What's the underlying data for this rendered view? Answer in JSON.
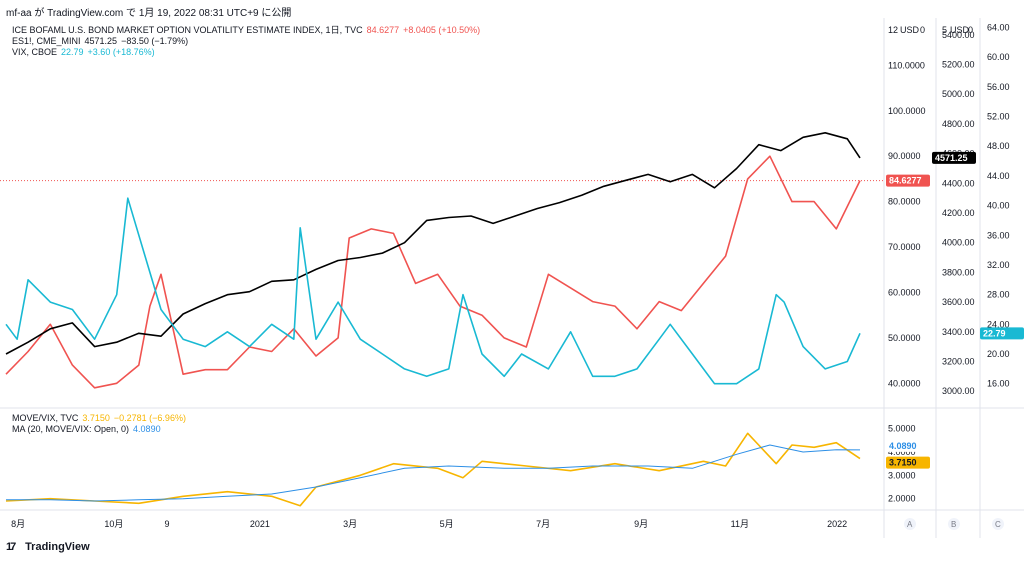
{
  "header": {
    "caption": "mf-aa が TradingView.com で 1月 19, 2022 08:31 UTC+9 に公開"
  },
  "brand": {
    "name": "TradingView",
    "icon": "tradingview-logo-icon"
  },
  "colors": {
    "move": "#f05350",
    "es": "#000000",
    "vix": "#19b9d3",
    "ratio": "#f7b500",
    "ma": "#2d8fe6",
    "grid": "#f0f3fa",
    "axis_text": "#131722"
  },
  "legend_main": [
    {
      "name": "ICE BOFAML U.S. BOND MARKET OPTION VOLATILITY ESTIMATE INDEX, 1日, TVC",
      "last": "84.6277",
      "change": "+8.0405 (+10.50%)",
      "color": "#f05350"
    },
    {
      "name": "ES1!, CME_MINI",
      "last": "4571.25",
      "change": "−83.50 (−1.79%)",
      "color": "#131722"
    },
    {
      "name": "VIX, CBOE",
      "last": "22.79",
      "change": "+3.60 (+18.76%)",
      "color": "#19b9d3"
    }
  ],
  "legend_lower": [
    {
      "name": "MOVE/VIX, TVC",
      "last": "3.7150",
      "change": "−0.2781 (−6.96%)",
      "color": "#f7b500"
    },
    {
      "name": "MA (20, MOVE/VIX: Open, 0)",
      "last": "4.0890",
      "change": "",
      "color": "#2d8fe6"
    }
  ],
  "axes": {
    "move_ticks": [
      "110.0000",
      "100.0000",
      "90.0000",
      "80.0000",
      "70.0000",
      "60.0000",
      "50.0000",
      "40.0000"
    ],
    "es_ticks": [
      "5400.00",
      "5200.00",
      "5000.00",
      "4800.00",
      "4600.00",
      "4400.00",
      "4200.00",
      "4000.00",
      "3800.00",
      "3600.00",
      "3400.00",
      "3200.00",
      "3000.00"
    ],
    "vix_ticks": [
      "64.00",
      "60.00",
      "56.00",
      "52.00",
      "48.00",
      "44.00",
      "40.00",
      "36.00",
      "32.00",
      "28.00",
      "24.00",
      "20.00",
      "16.00"
    ],
    "ratio_ticks": [
      "5.0000",
      "4.0000",
      "3.0000",
      "2.0000"
    ],
    "unit_label": "USD",
    "partial_top_labels": [
      "12",
      "5",
      "0"
    ],
    "x_labels": [
      "8月",
      "10月",
      "9",
      "2021",
      "3月",
      "5月",
      "7月",
      "9月",
      "11月",
      "2022"
    ],
    "scale_buttons": [
      "A",
      "B",
      "C"
    ],
    "badges": {
      "move": "84.6277",
      "es": "4571.25",
      "vix": "22.79",
      "ratio": "3.7150",
      "ma": "4.0890"
    }
  },
  "chart_data": {
    "type": "line",
    "x_range": [
      "2020-07-27",
      "2022-01-18"
    ],
    "series": [
      {
        "name": "ICE BOFAML U.S. BOND MARKET OPTION VOLATILITY ESTIMATE INDEX",
        "axis": "move",
        "ylim": [
          35,
          120
        ],
        "x": [
          "2020-07-27",
          "2020-08-10",
          "2020-08-24",
          "2020-09-07",
          "2020-09-21",
          "2020-10-05",
          "2020-10-19",
          "2020-10-26",
          "2020-11-02",
          "2020-11-16",
          "2020-11-30",
          "2020-12-14",
          "2020-12-28",
          "2021-01-11",
          "2021-01-25",
          "2021-02-08",
          "2021-02-22",
          "2021-03-01",
          "2021-03-15",
          "2021-03-29",
          "2021-04-12",
          "2021-04-26",
          "2021-05-10",
          "2021-05-24",
          "2021-06-07",
          "2021-06-21",
          "2021-07-05",
          "2021-07-19",
          "2021-08-02",
          "2021-08-16",
          "2021-08-30",
          "2021-09-13",
          "2021-09-27",
          "2021-10-11",
          "2021-10-25",
          "2021-11-08",
          "2021-11-22",
          "2021-12-06",
          "2021-12-20",
          "2022-01-03",
          "2022-01-18"
        ],
        "y": [
          42,
          47,
          53,
          44,
          39,
          40,
          44,
          57,
          64,
          42,
          43,
          43,
          48,
          47,
          52,
          46,
          50,
          72,
          74,
          73,
          62,
          64,
          57,
          55,
          50,
          48,
          64,
          61,
          58,
          57,
          52,
          58,
          56,
          62,
          68,
          85,
          90,
          80,
          80,
          74,
          84.6277
        ]
      },
      {
        "name": "ES1!, CME_MINI",
        "axis": "es",
        "ylim": [
          2900,
          5500
        ],
        "x": [
          "2020-07-27",
          "2020-08-10",
          "2020-08-24",
          "2020-09-07",
          "2020-09-21",
          "2020-10-05",
          "2020-10-19",
          "2020-11-02",
          "2020-11-16",
          "2020-11-30",
          "2020-12-14",
          "2020-12-28",
          "2021-01-11",
          "2021-01-25",
          "2021-02-08",
          "2021-02-22",
          "2021-03-08",
          "2021-03-22",
          "2021-04-05",
          "2021-04-19",
          "2021-05-03",
          "2021-05-17",
          "2021-05-31",
          "2021-06-14",
          "2021-06-28",
          "2021-07-12",
          "2021-07-26",
          "2021-08-09",
          "2021-08-23",
          "2021-09-06",
          "2021-09-20",
          "2021-10-04",
          "2021-10-18",
          "2021-11-01",
          "2021-11-15",
          "2021-11-29",
          "2021-12-13",
          "2021-12-27",
          "2022-01-10",
          "2022-01-18"
        ],
        "y": [
          3250,
          3330,
          3420,
          3460,
          3300,
          3330,
          3390,
          3370,
          3520,
          3590,
          3650,
          3670,
          3740,
          3750,
          3820,
          3880,
          3900,
          3930,
          4000,
          4150,
          4170,
          4180,
          4130,
          4180,
          4230,
          4270,
          4320,
          4380,
          4420,
          4460,
          4410,
          4460,
          4370,
          4500,
          4660,
          4620,
          4710,
          4740,
          4700,
          4571.25
        ]
      },
      {
        "name": "VIX, CBOE",
        "axis": "vix",
        "ylim": [
          13,
          65
        ],
        "x": [
          "2020-07-27",
          "2020-08-03",
          "2020-08-10",
          "2020-08-24",
          "2020-09-07",
          "2020-09-21",
          "2020-10-05",
          "2020-10-12",
          "2020-10-26",
          "2020-11-02",
          "2020-11-16",
          "2020-11-30",
          "2020-12-14",
          "2020-12-28",
          "2021-01-11",
          "2021-01-25",
          "2021-01-29",
          "2021-02-08",
          "2021-02-22",
          "2021-03-08",
          "2021-03-22",
          "2021-04-05",
          "2021-04-19",
          "2021-05-03",
          "2021-05-12",
          "2021-05-24",
          "2021-06-07",
          "2021-06-18",
          "2021-07-05",
          "2021-07-19",
          "2021-08-02",
          "2021-08-16",
          "2021-08-30",
          "2021-09-13",
          "2021-09-20",
          "2021-10-04",
          "2021-10-18",
          "2021-11-01",
          "2021-11-15",
          "2021-11-26",
          "2021-12-01",
          "2021-12-13",
          "2021-12-27",
          "2022-01-10",
          "2022-01-18"
        ],
        "y": [
          24,
          22,
          30,
          27,
          26,
          22,
          28,
          41,
          31,
          26,
          22,
          21,
          23,
          21,
          24,
          22,
          37,
          22,
          27,
          22,
          20,
          18,
          17,
          18,
          28,
          20,
          17,
          20,
          18,
          23,
          17,
          17,
          18,
          22,
          24,
          20,
          16,
          16,
          18,
          28,
          27,
          21,
          18,
          19,
          22.79
        ]
      },
      {
        "name": "MOVE/VIX, TVC",
        "axis": "ratio",
        "ylim": [
          1.6,
          5.8
        ],
        "x": [
          "2020-07-27",
          "2020-08-24",
          "2020-09-21",
          "2020-10-19",
          "2020-11-16",
          "2020-12-14",
          "2021-01-11",
          "2021-01-29",
          "2021-02-08",
          "2021-03-08",
          "2021-03-29",
          "2021-04-26",
          "2021-05-12",
          "2021-05-24",
          "2021-06-21",
          "2021-07-19",
          "2021-08-16",
          "2021-09-13",
          "2021-10-11",
          "2021-10-25",
          "2021-11-08",
          "2021-11-26",
          "2021-12-06",
          "2021-12-20",
          "2022-01-03",
          "2022-01-18"
        ],
        "y": [
          1.9,
          2.0,
          1.9,
          1.8,
          2.1,
          2.3,
          2.1,
          1.7,
          2.5,
          3.0,
          3.5,
          3.3,
          2.9,
          3.6,
          3.4,
          3.2,
          3.5,
          3.2,
          3.6,
          3.4,
          4.8,
          3.5,
          4.3,
          4.2,
          4.4,
          3.715
        ]
      },
      {
        "name": "MA (20, MOVE/VIX: Open, 0)",
        "axis": "ratio",
        "ylim": [
          1.6,
          5.8
        ],
        "x": [
          "2020-07-27",
          "2020-08-24",
          "2020-09-21",
          "2020-10-19",
          "2020-11-16",
          "2020-12-14",
          "2021-01-11",
          "2021-02-08",
          "2021-03-08",
          "2021-04-05",
          "2021-05-03",
          "2021-06-07",
          "2021-07-05",
          "2021-08-02",
          "2021-09-06",
          "2021-10-04",
          "2021-11-01",
          "2021-11-22",
          "2021-12-13",
          "2022-01-03",
          "2022-01-18"
        ],
        "y": [
          1.95,
          1.95,
          1.9,
          1.95,
          2.0,
          2.1,
          2.2,
          2.5,
          2.9,
          3.3,
          3.4,
          3.3,
          3.3,
          3.4,
          3.4,
          3.3,
          3.9,
          4.3,
          4.0,
          4.1,
          4.089
        ]
      }
    ]
  }
}
